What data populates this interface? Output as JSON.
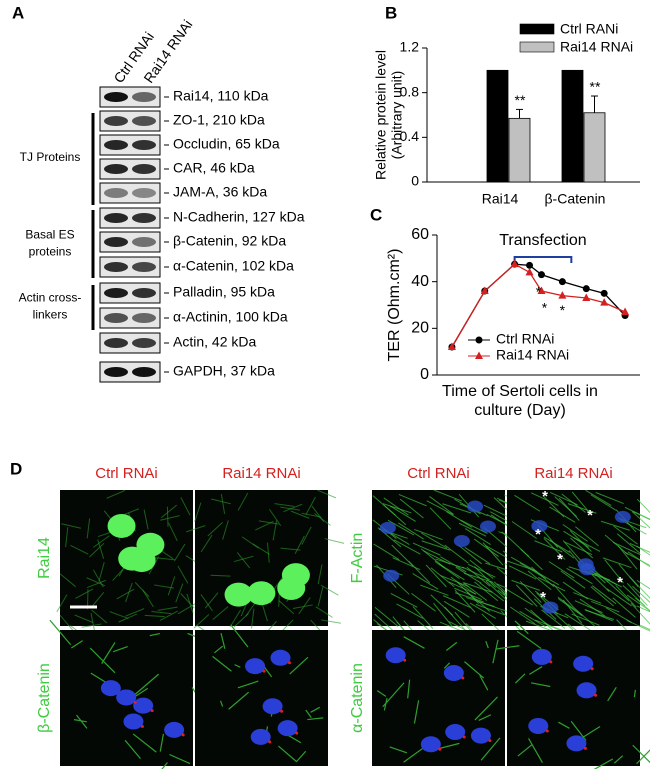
{
  "panel_a": {
    "letter": "A",
    "lanes": [
      "Ctrl RNAi",
      "Rai14 RNAi"
    ],
    "bands": [
      "Rai14, 110 kDa",
      "ZO-1, 210 kDa",
      "Occludin, 65 kDa",
      "CAR, 46 kDa",
      "JAM-A, 36 kDa",
      "N-Cadherin, 127 kDa",
      "β-Catenin, 92 kDa",
      "α-Catenin, 102 kDa",
      "Palladin, 95 kDa",
      "α-Actinin, 100 kDa",
      "Actin, 42 kDa",
      "GAPDH, 37 kDa"
    ],
    "groups": [
      [
        "TJ Proteins"
      ],
      [
        "Basal ES",
        "proteins"
      ],
      [
        "Actin cross-",
        "linkers"
      ]
    ]
  },
  "chart_data": [
    {
      "type": "bar",
      "panel_label": "B",
      "y_label": [
        "Relative protein level",
        "(Arbitrary unit)"
      ],
      "categories": [
        "Rai14",
        "β-Catenin"
      ],
      "series": [
        {
          "name": "Ctrl RANi",
          "color": "#000000",
          "values": [
            1,
            1
          ]
        },
        {
          "name": "Rai14 RNAi",
          "color": "#c0c0c0",
          "values": [
            0.57,
            0.62
          ],
          "errors": [
            0.08,
            0.15
          ]
        }
      ],
      "significance": [
        "**",
        "**"
      ],
      "ylim": [
        0,
        1.2
      ],
      "yticks": [
        0,
        0.4,
        0.8,
        1.2
      ]
    },
    {
      "type": "line",
      "panel_label": "C",
      "y_label": "TER (Ohm.cm²)",
      "x_label": [
        "Time of Sertoli cells in",
        "culture (Day)"
      ],
      "x": [
        0.7,
        1.8,
        2.8,
        3.3,
        3.7,
        4.4,
        5.2,
        5.8,
        6.5
      ],
      "series": [
        {
          "name": "Ctrl RNAi",
          "color": "#000000",
          "marker": "circle",
          "values": [
            12,
            36,
            47.5,
            47,
            43,
            40,
            37,
            35,
            25.5
          ]
        },
        {
          "name": "Rai14 RNAi",
          "color": "#d42020",
          "marker": "triangle",
          "values": [
            12,
            36,
            47.5,
            44,
            36,
            34,
            33,
            31,
            27
          ]
        }
      ],
      "bracket": {
        "label": "Transfection",
        "x": [
          2.8,
          4.7
        ]
      },
      "annotations": [
        {
          "text": "*",
          "x": 3.6,
          "y": 37
        },
        {
          "text": "*",
          "x": 3.8,
          "y": 30
        },
        {
          "text": "*",
          "x": 4.4,
          "y": 29
        }
      ],
      "xlim": [
        0.2,
        7
      ],
      "ylim": [
        0,
        60
      ],
      "yticks": [
        0,
        20,
        40,
        60
      ]
    }
  ],
  "panel_d": {
    "letter": "D",
    "columns": [
      "Ctrl RNAi",
      "Rai14 RNAi",
      "Ctrl RNAi",
      "Rai14 RNAi"
    ],
    "rows": [
      [
        "Rai14",
        "F-Actin"
      ],
      [
        "β-Catenin",
        "α-Catenin"
      ]
    ],
    "markers": [
      "*",
      "*",
      "*",
      "*",
      "*",
      "*"
    ]
  }
}
